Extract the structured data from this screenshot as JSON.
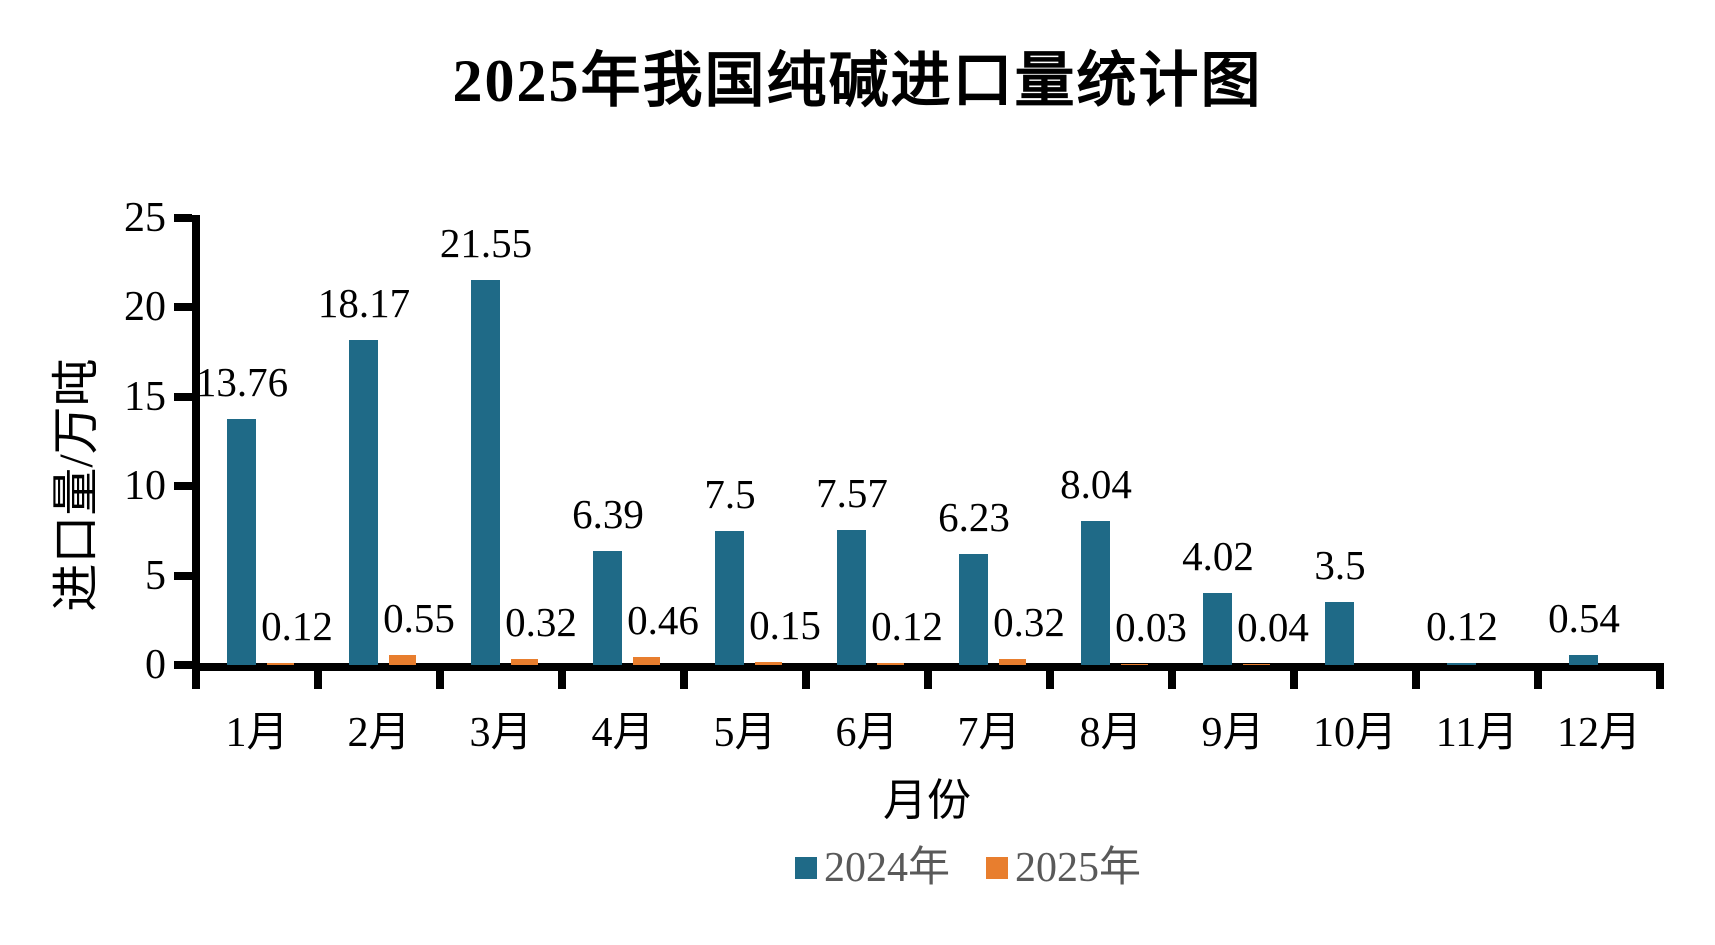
{
  "page": {
    "background": "#ffffff",
    "text_color": "#000000",
    "legend_text_color": "#595959",
    "axis_color": "#000000"
  },
  "chart_data": {
    "type": "bar",
    "title": "2025年我国纯碱进口量统计图",
    "xlabel": "月份",
    "ylabel": "进口量/万吨",
    "ylim": [
      0,
      25
    ],
    "yticks": [
      0,
      5,
      10,
      15,
      20,
      25
    ],
    "grid": false,
    "legend_position": "bottom-center",
    "categories": [
      "1月",
      "2月",
      "3月",
      "4月",
      "5月",
      "6月",
      "7月",
      "8月",
      "9月",
      "10月",
      "11月",
      "12月"
    ],
    "series": [
      {
        "name": "2024年",
        "color": "#1F6A87",
        "values": [
          13.76,
          18.17,
          21.55,
          6.39,
          7.5,
          7.57,
          6.23,
          8.04,
          4.02,
          3.5,
          0.12,
          0.54
        ],
        "labels": [
          "13.76",
          "18.17",
          "21.55",
          "6.39",
          "7.5",
          "7.57",
          "6.23",
          "8.04",
          "4.02",
          "3.5",
          "0.12",
          "0.54"
        ]
      },
      {
        "name": "2025年",
        "color": "#E87E2E",
        "values": [
          0.12,
          0.55,
          0.32,
          0.46,
          0.15,
          0.12,
          0.32,
          0.03,
          0.04,
          null,
          null,
          null
        ],
        "labels": [
          "0.12",
          "0.55",
          "0.32",
          "0.46",
          "0.15",
          "0.12",
          "0.32",
          "0.03",
          "0.04",
          null,
          null,
          null
        ]
      }
    ]
  }
}
